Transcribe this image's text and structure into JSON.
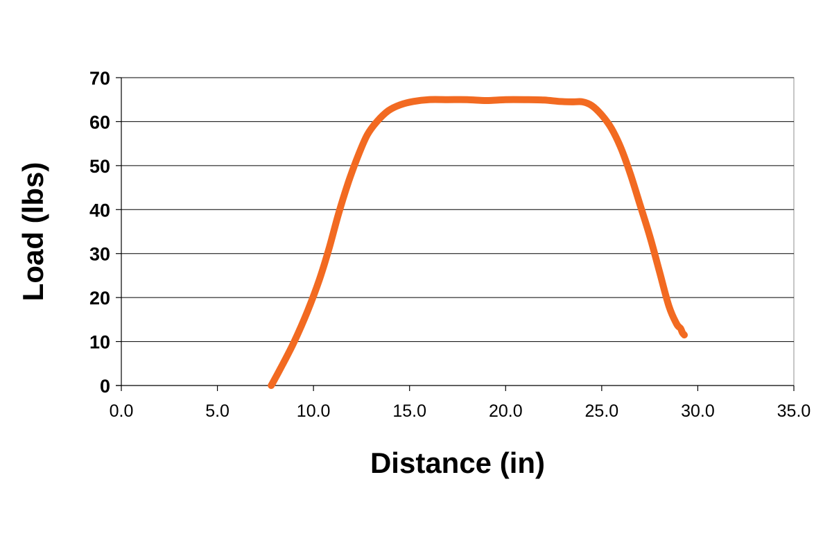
{
  "chart_data": {
    "type": "line",
    "title": "",
    "xlabel": "Distance (in)",
    "ylabel": "Load (lbs)",
    "xlim": [
      0,
      35
    ],
    "ylim": [
      0,
      70
    ],
    "x_ticks": [
      0,
      5,
      10,
      15,
      20,
      25,
      30,
      35
    ],
    "x_tick_labels": [
      "0.0",
      "5.0",
      "10.0",
      "15.0",
      "20.0",
      "25.0",
      "30.0",
      "35.0"
    ],
    "y_ticks": [
      0,
      10,
      20,
      30,
      40,
      50,
      60,
      70
    ],
    "y_tick_labels": [
      "0",
      "10",
      "20",
      "30",
      "40",
      "50",
      "60",
      "70"
    ],
    "grid": "horizontal",
    "legend": "none",
    "series": [
      {
        "color": "#f26a21",
        "x": [
          7.8,
          8.3,
          9.0,
          9.7,
          10.3,
          10.8,
          11.3,
          11.8,
          12.3,
          12.8,
          13.3,
          13.9,
          14.5,
          15.2,
          16.0,
          17.0,
          18.0,
          19.0,
          20.0,
          21.0,
          22.0,
          22.8,
          23.5,
          24.0,
          24.5,
          25.0,
          25.5,
          26.0,
          26.5,
          27.0,
          27.5,
          28.0,
          28.5,
          28.9,
          29.1,
          29.2,
          29.3
        ],
        "y": [
          0,
          4,
          10,
          17,
          24,
          31,
          39,
          46,
          52,
          57,
          60,
          62.5,
          63.8,
          64.6,
          65,
          65,
          65,
          64.8,
          65,
          65,
          64.9,
          64.6,
          64.5,
          64.5,
          63.6,
          61.5,
          58.5,
          54,
          48,
          41,
          34,
          26,
          18,
          14,
          13,
          12,
          11.5
        ]
      }
    ]
  }
}
